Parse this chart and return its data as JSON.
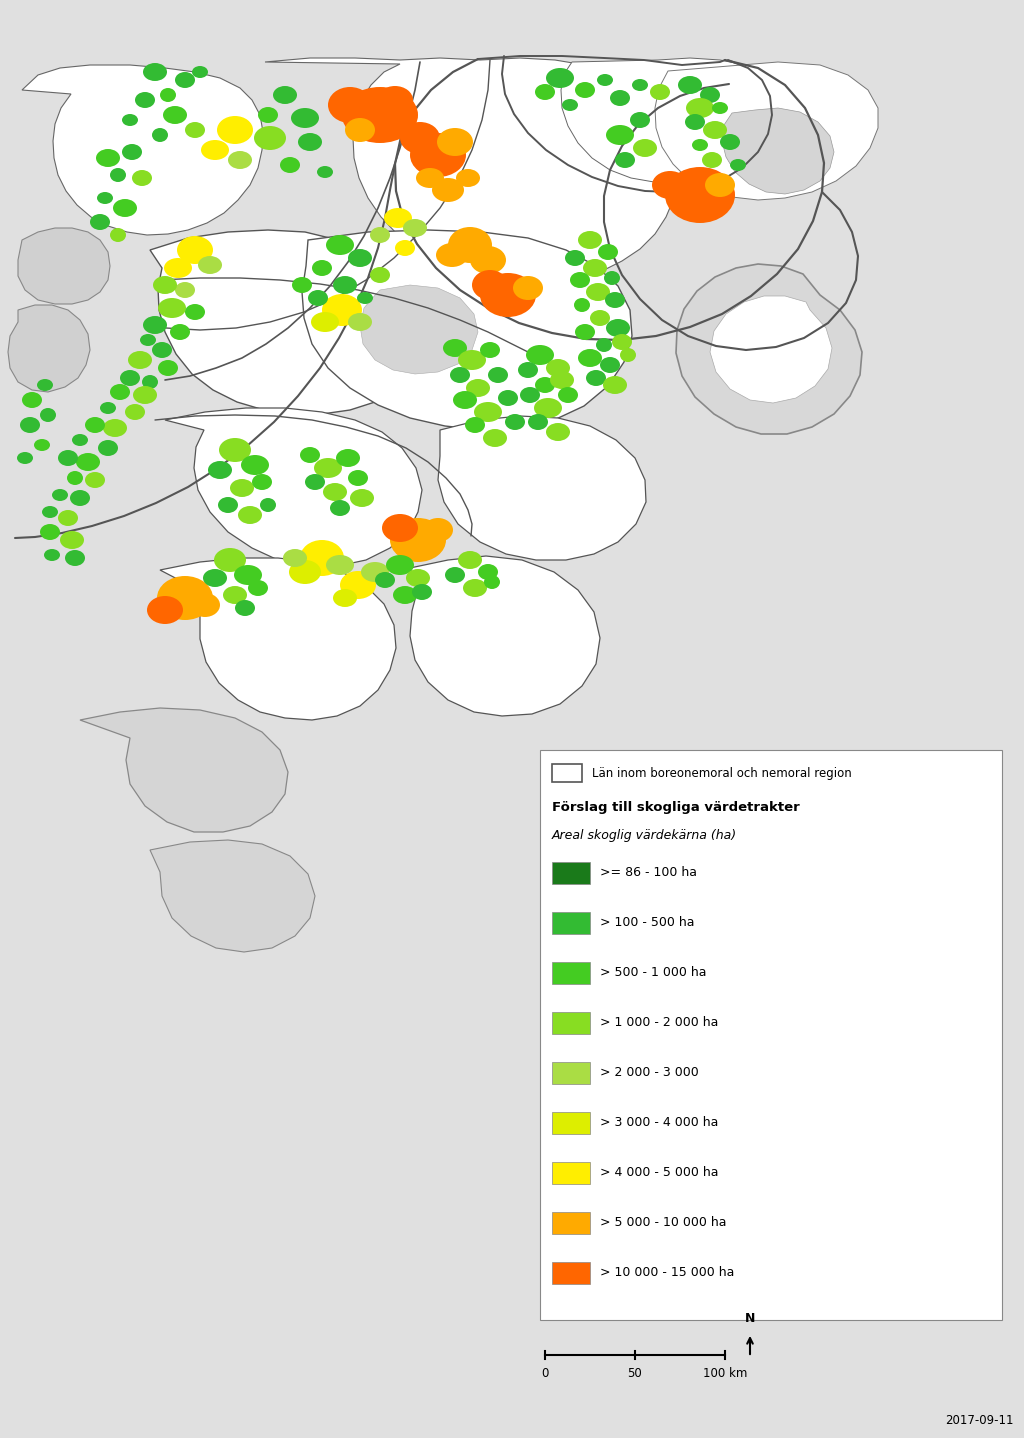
{
  "fig_width": 10.24,
  "fig_height": 14.38,
  "dpi": 100,
  "bg_color": "#e8e8e8",
  "map_white": "#ffffff",
  "map_gray_light": "#d0d0d0",
  "county_border_color": "#444444",
  "outer_border_color": "#333333",
  "legend": {
    "items": [
      {
        "label": ">= 86 - 100 ha",
        "color": "#1a7a1a"
      },
      {
        "label": "> 100 - 500 ha",
        "color": "#33bb33"
      },
      {
        "label": "> 500 - 1 000 ha",
        "color": "#44cc22"
      },
      {
        "label": "> 1 000 - 2 000 ha",
        "color": "#88dd22"
      },
      {
        "label": "> 2 000 - 3 000",
        "color": "#aadd44"
      },
      {
        "label": "> 3 000 - 4 000 ha",
        "color": "#ddee00"
      },
      {
        "label": "> 4 000 - 5 000 ha",
        "color": "#ffee00"
      },
      {
        "label": "> 5 000 - 10 000 ha",
        "color": "#ffaa00"
      },
      {
        "label": "> 10 000 - 15 000 ha",
        "color": "#ff6600"
      }
    ],
    "title1": "Län inom boreonemoral och nemoral region",
    "title2": "Förslag till skogliga värdetrakter",
    "subtitle": "Areal skoglig värdekärna (ha)"
  },
  "scalebar_label": "0        50      100 km",
  "date_text": "2017-09-11",
  "tract_colors": {
    "dark_green": "#1a7a1a",
    "green": "#33bb33",
    "mid_green": "#44cc22",
    "light_green": "#88dd22",
    "yellow_green": "#aadd44",
    "yellow": "#ddee00",
    "pale_yellow": "#ffee00",
    "orange": "#ffaa00",
    "dark_orange": "#ff6600"
  }
}
